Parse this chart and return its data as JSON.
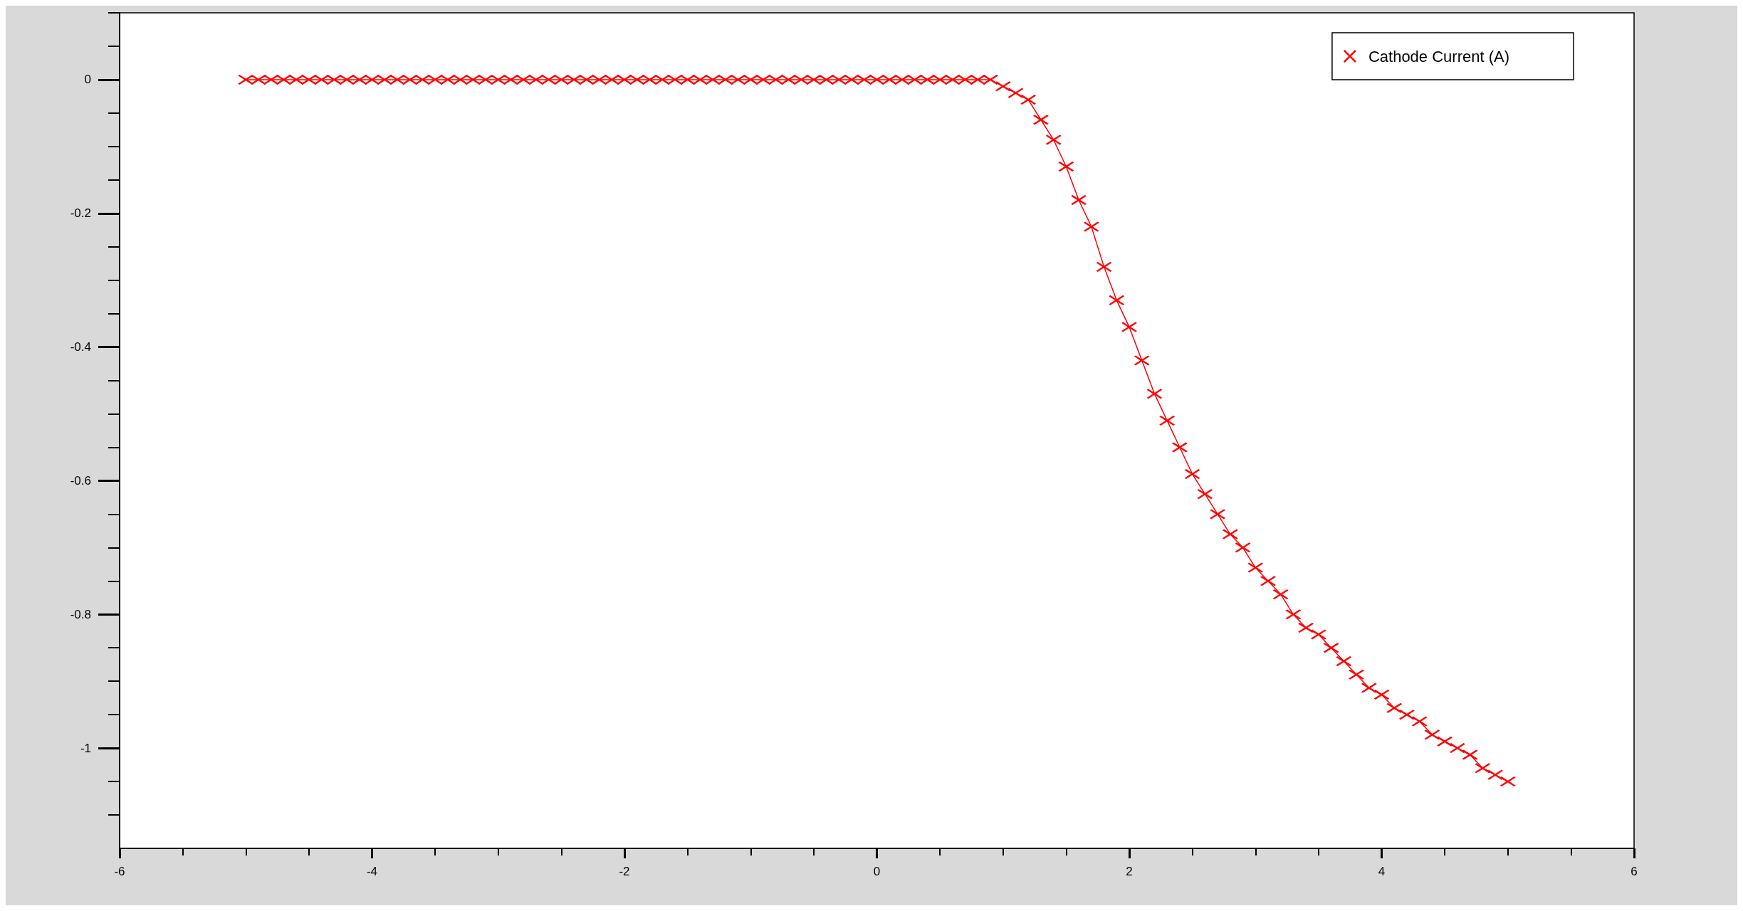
{
  "chart_data": {
    "type": "line",
    "marker": "cross",
    "legend": "top right",
    "grid": false,
    "xlim": [
      -6,
      6
    ],
    "ylim": [
      -1.15,
      0.1
    ],
    "xticks": [
      -6,
      {
        "value": -5.5,
        "label": null
      },
      {
        "value": -5,
        "label": null
      },
      {
        "value": -4.5,
        "label": null
      },
      -4,
      {
        "value": -3.5,
        "label": null
      },
      {
        "value": -3,
        "label": null
      },
      {
        "value": -2.5,
        "label": null
      },
      -2,
      {
        "value": -1.5,
        "label": null
      },
      {
        "value": -1,
        "label": null
      },
      {
        "value": -0.5,
        "label": null
      },
      0,
      {
        "value": 0.5,
        "label": null
      },
      {
        "value": 1,
        "label": null
      },
      {
        "value": 1.5,
        "label": null
      },
      2,
      {
        "value": 2.5,
        "label": null
      },
      {
        "value": 3,
        "label": null
      },
      {
        "value": 3.5,
        "label": null
      },
      4,
      {
        "value": 4.5,
        "label": null
      },
      {
        "value": 5,
        "label": null
      },
      {
        "value": 5.5,
        "label": null
      },
      6
    ],
    "yticks": [
      {
        "value": 0.1,
        "label": null
      },
      {
        "value": 0.05,
        "label": null
      },
      0,
      {
        "value": -0.05,
        "label": null
      },
      {
        "value": -0.1,
        "label": null
      },
      {
        "value": -0.15,
        "label": null
      },
      -0.2,
      {
        "value": -0.25,
        "label": null
      },
      {
        "value": -0.3,
        "label": null
      },
      {
        "value": -0.35,
        "label": null
      },
      -0.4,
      {
        "value": -0.45,
        "label": null
      },
      {
        "value": -0.5,
        "label": null
      },
      {
        "value": -0.55,
        "label": null
      },
      -0.6,
      {
        "value": -0.65,
        "label": null
      },
      {
        "value": -0.7,
        "label": null
      },
      {
        "value": -0.75,
        "label": null
      },
      -0.8,
      {
        "value": -0.85,
        "label": null
      },
      {
        "value": -0.9,
        "label": null
      },
      {
        "value": -0.95,
        "label": null
      },
      -1,
      {
        "value": -1.05,
        "label": null
      },
      {
        "value": -1.1,
        "label": null
      }
    ],
    "series": [
      {
        "name": "Cathode Current (A)",
        "color": "#ff0000",
        "x": [
          -5,
          -4.9,
          -4.8,
          -4.7,
          -4.6,
          -4.5,
          -4.4,
          -4.3,
          -4.2,
          -4.1,
          -4,
          -3.9,
          -3.8,
          -3.7,
          -3.6,
          -3.5,
          -3.4,
          -3.3,
          -3.2,
          -3.1,
          -3,
          -2.9,
          -2.8,
          -2.7,
          -2.6,
          -2.5,
          -2.4,
          -2.3,
          -2.2,
          -2.1,
          -2,
          -1.9,
          -1.8,
          -1.7,
          -1.6,
          -1.5,
          -1.4,
          -1.3,
          -1.2,
          -1.1,
          -1,
          -0.9,
          -0.8,
          -0.7,
          -0.6,
          -0.5,
          -0.4,
          -0.3,
          -0.2,
          -0.1,
          0,
          0.1,
          0.2,
          0.3,
          0.4,
          0.5,
          0.6,
          0.7,
          0.8,
          0.9,
          1,
          1.1,
          1.2,
          1.3,
          1.4,
          1.5,
          1.6,
          1.7,
          1.8,
          1.9,
          2,
          2.1,
          2.2,
          2.3,
          2.4,
          2.5,
          2.6,
          2.7,
          2.8,
          2.9,
          3,
          3.1,
          3.2,
          3.3,
          3.4,
          3.5,
          3.6,
          3.7,
          3.8,
          3.9,
          4,
          4.1,
          4.2,
          4.3,
          4.4,
          4.5,
          4.6,
          4.7,
          4.8,
          4.9,
          5
        ],
        "values": [
          0,
          0,
          0,
          0,
          0,
          0,
          0,
          0,
          0,
          0,
          0,
          0,
          0,
          0,
          0,
          0,
          0,
          0,
          0,
          0,
          0,
          0,
          0,
          0,
          0,
          0,
          0,
          0,
          0,
          0,
          0,
          0,
          0,
          0,
          0,
          0,
          0,
          0,
          0,
          0,
          0,
          0,
          0,
          0,
          0,
          0,
          0,
          0,
          0,
          0,
          0,
          0,
          0,
          0,
          0,
          0,
          0,
          0,
          0,
          0,
          -0.01,
          -0.02,
          -0.03,
          -0.06,
          -0.09,
          -0.13,
          -0.18,
          -0.22,
          -0.28,
          -0.33,
          -0.37,
          -0.42,
          -0.47,
          -0.51,
          -0.55,
          -0.59,
          -0.62,
          -0.65,
          -0.68,
          -0.7,
          -0.73,
          -0.75,
          -0.77,
          -0.8,
          -0.82,
          -0.83,
          -0.85,
          -0.87,
          -0.89,
          -0.91,
          -0.92,
          -0.94,
          -0.95,
          -0.96,
          -0.98,
          -0.99,
          -1,
          -1.01,
          -1.03,
          -1.04,
          -1.05
        ]
      }
    ]
  }
}
